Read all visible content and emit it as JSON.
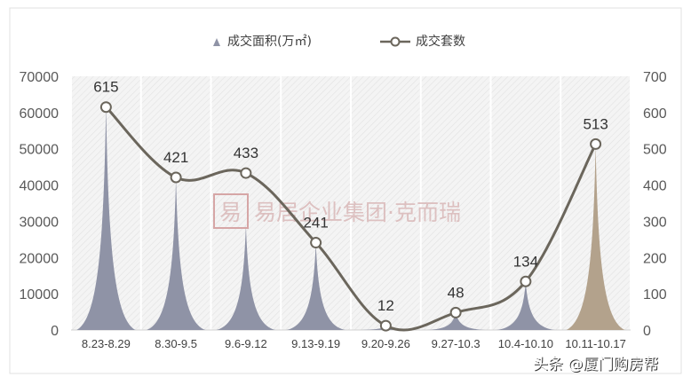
{
  "chart_data": {
    "type": "bar",
    "categories": [
      "8.23-8.29",
      "8.30-9.5",
      "9.6-9.12",
      "9.13-9.19",
      "9.20-9.26",
      "9.27-10.3",
      "10.4-10.10",
      "10.11-10.17"
    ],
    "series": [
      {
        "name": "成交面积(万㎡)",
        "type": "bar",
        "axis": "left",
        "values": [
          62000,
          42000,
          29000,
          24000,
          1200,
          4800,
          13400,
          51000
        ],
        "colors": [
          "#8f93a6",
          "#8f93a6",
          "#8f93a6",
          "#8f93a6",
          "#8f93a6",
          "#8f93a6",
          "#8f93a6",
          "#b3a28c"
        ]
      },
      {
        "name": "成交套数",
        "type": "line",
        "axis": "right",
        "values": [
          615,
          421,
          433,
          241,
          12,
          48,
          134,
          513
        ],
        "color": "#6b665c"
      }
    ],
    "y_left": {
      "ticks": [
        "0",
        "10000",
        "20000",
        "30000",
        "40000",
        "50000",
        "60000",
        "70000"
      ],
      "ylim": [
        0,
        70000
      ]
    },
    "y_right": {
      "ticks": [
        "0",
        "100",
        "200",
        "300",
        "400",
        "500",
        "600",
        "700"
      ],
      "ylim": [
        0,
        700
      ]
    },
    "legend_position": "top-center",
    "grid": "vertical bands"
  },
  "watermark": {
    "seal": "易",
    "text": "易居企业集团·克而瑞"
  },
  "credit": "头条 @厦门购房帮"
}
